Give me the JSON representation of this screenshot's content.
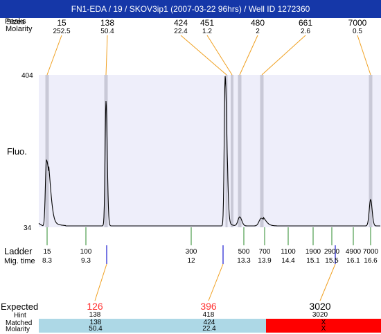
{
  "window": {
    "title": "FN1-EDA / 19 / SKOV3ip1 (2007-03-22 96hrs) / Well ID 1272360"
  },
  "top_labels": {
    "peak_row_label": "Peaks",
    "size_row_label": "Sizes",
    "molarity_row_label": "Molarity"
  },
  "peaks": [
    {
      "size": "15",
      "molarity": "252.5"
    },
    {
      "size": "138",
      "molarity": "50.4"
    },
    {
      "size": "424",
      "molarity": "22.4"
    },
    {
      "size": "451",
      "molarity": "1.2"
    },
    {
      "size": "480",
      "molarity": "2"
    },
    {
      "size": "661",
      "molarity": "2.6"
    },
    {
      "size": "7000",
      "molarity": "0.5"
    }
  ],
  "plot": {
    "y_label": "Fluo.",
    "y_max": "404",
    "y_min": "34",
    "background": "#eeeefa",
    "band_color": "#c9c9d7",
    "trace_color": "#000000"
  },
  "ladder": {
    "label": "Ladder",
    "mig_label": "Mig. time",
    "items": [
      {
        "size": "15",
        "time": "8.3"
      },
      {
        "size": "100",
        "time": "9.3"
      },
      {
        "size": "300",
        "time": "12"
      },
      {
        "size": "500",
        "time": "13.3"
      },
      {
        "size": "700",
        "time": "13.9"
      },
      {
        "size": "1100",
        "time": "14.4"
      },
      {
        "size": "1900",
        "time": "15.1"
      },
      {
        "size": "2900",
        "time": "15.5"
      },
      {
        "size": "4900",
        "time": "16.1"
      },
      {
        "size": "7000",
        "time": "16.6"
      }
    ]
  },
  "expected": {
    "label": "Expected",
    "hint_label": "Hint",
    "matched_label": "Matched",
    "molarity_label": "Molarity",
    "columns": [
      {
        "expected": "126",
        "hint": "138",
        "matched": "138",
        "molarity": "50.4",
        "status": "matched"
      },
      {
        "expected": "396",
        "hint": "418",
        "matched": "424",
        "molarity": "22.4",
        "status": "matched"
      },
      {
        "expected": "3020",
        "hint": "3020",
        "matched": "X",
        "molarity": "X",
        "status": "missing"
      }
    ],
    "colors": {
      "matched": "#add8e6",
      "missing": "#ff0000",
      "expected_warn": "#ff3333"
    }
  },
  "colors": {
    "connector": "#f0a020",
    "ladder_tick": "#2a8a2a",
    "expected_tick": "#1a1ad0"
  }
}
